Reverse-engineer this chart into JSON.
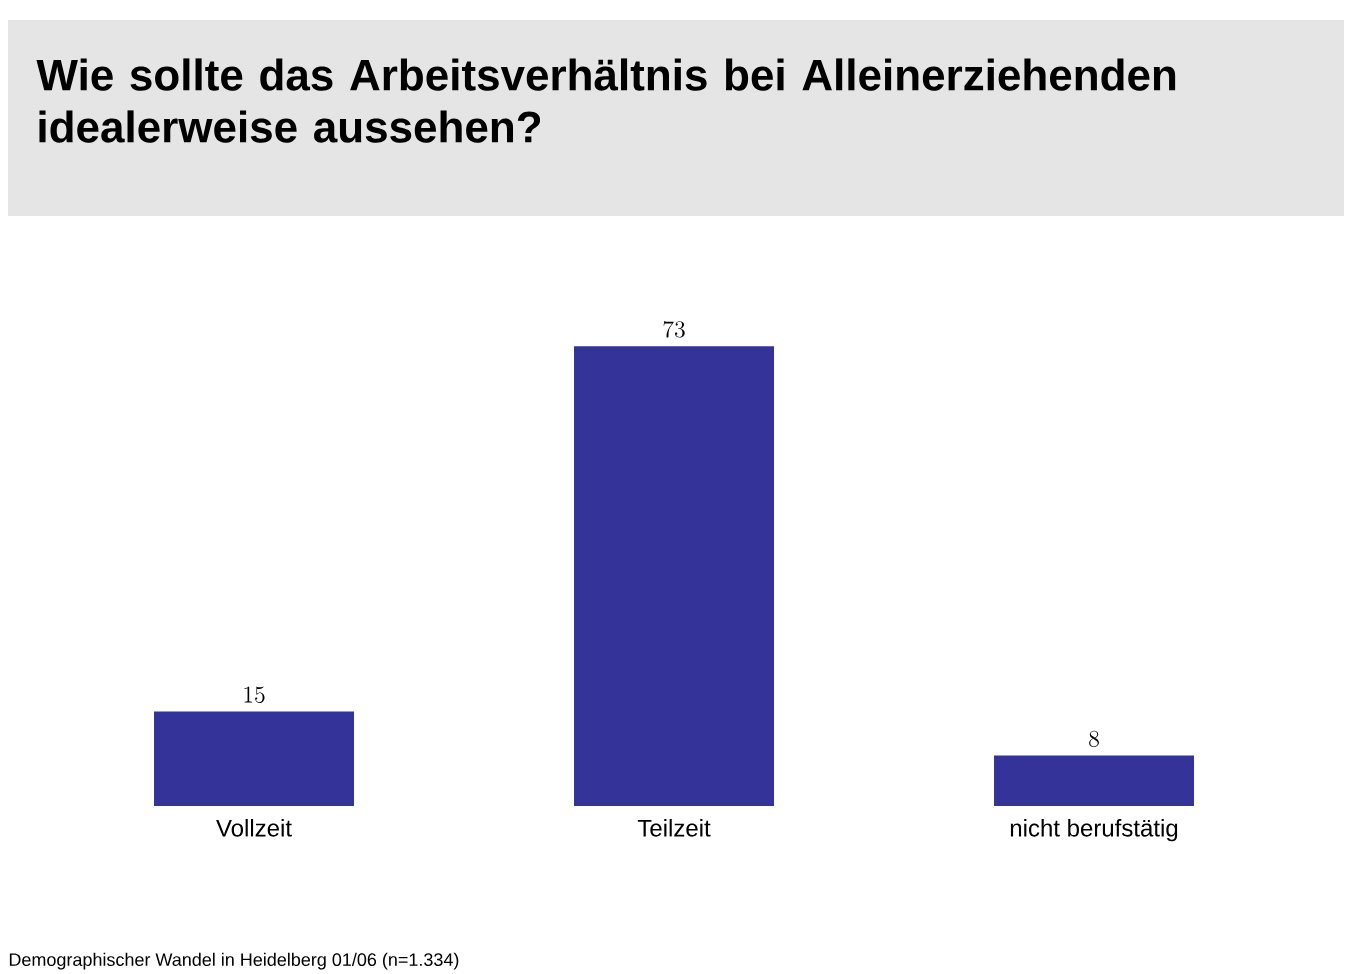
{
  "chart_data": {
    "type": "bar",
    "title": "Wie sollte das Arbeitsverhältnis bei Alleinerziehenden idealerweise aussehen?",
    "categories": [
      "Vollzeit",
      "Teilzeit",
      "nicht berufstätig"
    ],
    "values": [
      15,
      73,
      8
    ],
    "color": "#333399",
    "data_labels": true,
    "annotations": [
      "Demographischer Wandel in Heidelberg 01/06 (n=1.334)"
    ]
  }
}
